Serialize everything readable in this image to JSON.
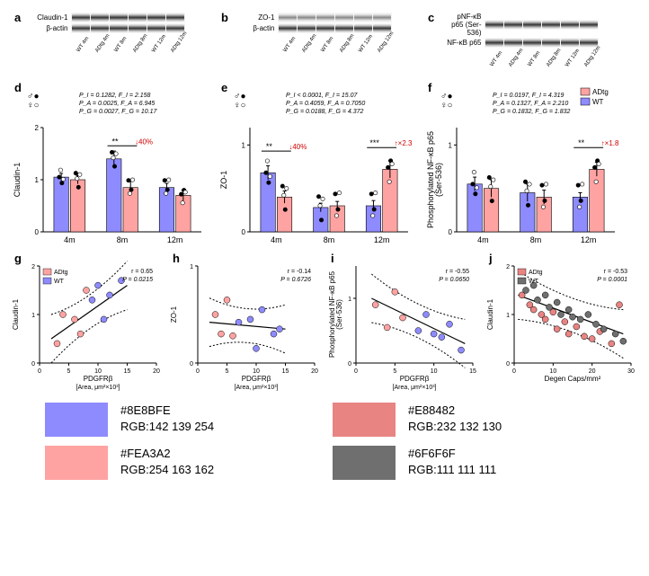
{
  "westerns": {
    "a": {
      "label": "a",
      "rows": [
        "Claudin-1",
        "β-actin"
      ],
      "lanes": [
        "WT 4m",
        "ADtg 4m",
        "WT 8m",
        "ADtg 8m",
        "WT 12m",
        "ADtg 12m"
      ]
    },
    "b": {
      "label": "b",
      "rows": [
        "ZO-1",
        "β-actin"
      ],
      "lanes": [
        "WT 4m",
        "ADtg 4m",
        "WT 8m",
        "ADtg 8m",
        "WT 12m",
        "ADtg 12m"
      ]
    },
    "c": {
      "label": "c",
      "rows": [
        "pNF-κB p65 (Ser-536)",
        "NF-κB p65"
      ],
      "lanes": [
        "WT 4m",
        "ADtg 4m",
        "WT 8m",
        "ADtg 8m",
        "WT 12m",
        "ADtg 12m"
      ]
    }
  },
  "barCharts": {
    "d": {
      "label": "d",
      "ylabel": "Claudin-1",
      "gender": "♂♀",
      "stats": [
        "P_I = 0.1282, F_I = 2.158",
        "P_A = 0.0025, F_A = 6.945",
        "P_G = 0.0027, F_G = 10.17"
      ],
      "groups": [
        "4m",
        "8m",
        "12m"
      ],
      "ymax": 2.0,
      "yticks": [
        0,
        1,
        2
      ],
      "series": [
        {
          "name": "WT",
          "color": "#8E8BFE",
          "values": [
            1.05,
            1.4,
            0.85
          ],
          "err": [
            0.07,
            0.15,
            0.08
          ]
        },
        {
          "name": "ADtg",
          "color": "#FEA3A2",
          "values": [
            1.0,
            0.85,
            0.7
          ],
          "err": [
            0.08,
            0.12,
            0.1
          ]
        }
      ],
      "annot": {
        "group": 1,
        "text": "**",
        "delta": "↓40%",
        "color": "#d00000"
      }
    },
    "e": {
      "label": "e",
      "ylabel": "ZO-1",
      "gender": "♂♀",
      "stats": [
        "P_I < 0.0001, F_I = 15.07",
        "P_A = 0.4059, F_A = 0.7050",
        "P_G = 0.0188, F_G = 4.372"
      ],
      "groups": [
        "4m",
        "8m",
        "12m"
      ],
      "ymax": 1.2,
      "yticks": [
        0,
        1
      ],
      "series": [
        {
          "name": "WT",
          "color": "#8E8BFE",
          "values": [
            0.68,
            0.28,
            0.3
          ],
          "err": [
            0.08,
            0.05,
            0.06
          ]
        },
        {
          "name": "ADtg",
          "color": "#FEA3A2",
          "values": [
            0.4,
            0.3,
            0.72
          ],
          "err": [
            0.07,
            0.05,
            0.1
          ]
        }
      ],
      "annot": {
        "group": 0,
        "text": "**",
        "delta": "↓40%",
        "color": "#d00000"
      },
      "annot2": {
        "group": 2,
        "text": "***",
        "delta": "↑×2.3",
        "color": "#d00000"
      }
    },
    "f": {
      "label": "f",
      "ylabel": "Phosphorylated NF-κB p65\n(Ser-536)",
      "gender": "♂♀",
      "stats": [
        "P_I = 0.0197, F_I = 4.319",
        "P_A = 0.1327, F_A = 2.210",
        "P_G = 0.1832, F_G = 1.832"
      ],
      "groups": [
        "4m",
        "8m",
        "12m"
      ],
      "ymax": 1.2,
      "yticks": [
        0,
        1
      ],
      "series": [
        {
          "name": "WT",
          "color": "#8E8BFE",
          "values": [
            0.55,
            0.45,
            0.4
          ],
          "err": [
            0.08,
            0.1,
            0.05
          ]
        },
        {
          "name": "ADtg",
          "color": "#FEA3A2",
          "values": [
            0.5,
            0.4,
            0.72
          ],
          "err": [
            0.1,
            0.08,
            0.08
          ]
        }
      ],
      "legend": [
        {
          "name": "ADtg",
          "color": "#FEA3A2"
        },
        {
          "name": "WT",
          "color": "#8E8BFE"
        }
      ],
      "annot": {
        "group": 2,
        "text": "**",
        "delta": "↑×1.8",
        "color": "#d00000"
      }
    }
  },
  "scatters": {
    "g": {
      "label": "g",
      "ylabel": "Claudin-1",
      "xlabel": "PDGFRβ",
      "xunit": "[Area, μm²×10³]",
      "xlim": [
        0,
        20
      ],
      "xticks": [
        0,
        5,
        10,
        15,
        20
      ],
      "ylim": [
        0,
        2
      ],
      "yticks": [
        0,
        1,
        2
      ],
      "r": "r = 0.65",
      "p": "P = 0.0215",
      "legend": [
        {
          "name": "ADtg",
          "color": "#FEA3A2"
        },
        {
          "name": "WT",
          "color": "#8E8BFE"
        }
      ],
      "fit": {
        "x1": 2,
        "y1": 0.5,
        "x2": 15,
        "y2": 1.6
      },
      "points": [
        {
          "x": 3,
          "y": 0.4,
          "c": "#FEA3A2"
        },
        {
          "x": 4,
          "y": 1.0,
          "c": "#FEA3A2"
        },
        {
          "x": 6,
          "y": 0.9,
          "c": "#FEA3A2"
        },
        {
          "x": 7,
          "y": 0.6,
          "c": "#FEA3A2"
        },
        {
          "x": 8,
          "y": 1.5,
          "c": "#FEA3A2"
        },
        {
          "x": 9,
          "y": 1.3,
          "c": "#8E8BFE"
        },
        {
          "x": 10,
          "y": 1.6,
          "c": "#8E8BFE"
        },
        {
          "x": 11,
          "y": 0.9,
          "c": "#8E8BFE"
        },
        {
          "x": 12,
          "y": 1.4,
          "c": "#8E8BFE"
        },
        {
          "x": 14,
          "y": 1.7,
          "c": "#8E8BFE"
        }
      ]
    },
    "h": {
      "label": "h",
      "ylabel": "ZO-1",
      "xlabel": "PDGFRβ",
      "xunit": "[Area, μm²×10³]",
      "xlim": [
        0,
        20
      ],
      "xticks": [
        0,
        5,
        10,
        15,
        20
      ],
      "ylim": [
        0,
        1
      ],
      "yticks": [
        0,
        1
      ],
      "r": "r = -0.14",
      "p": "P = 0.6726",
      "fit": {
        "x1": 2,
        "y1": 0.42,
        "x2": 15,
        "y2": 0.35
      },
      "points": [
        {
          "x": 3,
          "y": 0.5,
          "c": "#FEA3A2"
        },
        {
          "x": 4,
          "y": 0.3,
          "c": "#FEA3A2"
        },
        {
          "x": 5,
          "y": 0.65,
          "c": "#FEA3A2"
        },
        {
          "x": 6,
          "y": 0.28,
          "c": "#FEA3A2"
        },
        {
          "x": 7,
          "y": 0.42,
          "c": "#8E8BFE"
        },
        {
          "x": 9,
          "y": 0.45,
          "c": "#8E8BFE"
        },
        {
          "x": 10,
          "y": 0.15,
          "c": "#8E8BFE"
        },
        {
          "x": 11,
          "y": 0.55,
          "c": "#8E8BFE"
        },
        {
          "x": 13,
          "y": 0.3,
          "c": "#8E8BFE"
        },
        {
          "x": 14,
          "y": 0.35,
          "c": "#8E8BFE"
        }
      ]
    },
    "i": {
      "label": "i",
      "ylabel": "Phosphorylated NF-κB p65\n(Ser-536)",
      "xlabel": "PDGFRβ",
      "xunit": "[Area, μm²×10³]",
      "xlim": [
        0,
        15
      ],
      "xticks": [
        0,
        5,
        10,
        15
      ],
      "ylim": [
        0,
        1.5
      ],
      "yticks": [
        0,
        1
      ],
      "r": "r = -0.55",
      "p": "P = 0.0650",
      "fit": {
        "x1": 2,
        "y1": 1.0,
        "x2": 14,
        "y2": 0.3
      },
      "points": [
        {
          "x": 2.5,
          "y": 0.9,
          "c": "#FEA3A2"
        },
        {
          "x": 4,
          "y": 0.55,
          "c": "#FEA3A2"
        },
        {
          "x": 5,
          "y": 1.1,
          "c": "#FEA3A2"
        },
        {
          "x": 6,
          "y": 0.7,
          "c": "#FEA3A2"
        },
        {
          "x": 8,
          "y": 0.5,
          "c": "#8E8BFE"
        },
        {
          "x": 9,
          "y": 0.75,
          "c": "#8E8BFE"
        },
        {
          "x": 10,
          "y": 0.45,
          "c": "#8E8BFE"
        },
        {
          "x": 11,
          "y": 0.4,
          "c": "#8E8BFE"
        },
        {
          "x": 12,
          "y": 0.6,
          "c": "#8E8BFE"
        },
        {
          "x": 13.5,
          "y": 0.2,
          "c": "#8E8BFE"
        }
      ]
    },
    "j": {
      "label": "j",
      "ylabel": "Claudin-1",
      "xlabel": "Degen Caps/mm²",
      "xunit": "",
      "xlim": [
        0,
        30
      ],
      "xticks": [
        0,
        10,
        20,
        30
      ],
      "ylim": [
        0,
        2
      ],
      "yticks": [
        0,
        1,
        2
      ],
      "r": "r = -0.53",
      "p": "P = 0.0001",
      "legend": [
        {
          "name": "ADtg",
          "color": "#E88482"
        },
        {
          "name": "WT",
          "color": "#6F6F6F"
        }
      ],
      "fit": {
        "x1": 1,
        "y1": 1.4,
        "x2": 28,
        "y2": 0.6
      },
      "points": [
        {
          "x": 2,
          "y": 1.4,
          "c": "#E88482"
        },
        {
          "x": 3,
          "y": 1.5,
          "c": "#6F6F6F"
        },
        {
          "x": 4,
          "y": 1.2,
          "c": "#E88482"
        },
        {
          "x": 5,
          "y": 1.6,
          "c": "#6F6F6F"
        },
        {
          "x": 5,
          "y": 1.1,
          "c": "#E88482"
        },
        {
          "x": 6,
          "y": 1.3,
          "c": "#6F6F6F"
        },
        {
          "x": 7,
          "y": 1.0,
          "c": "#E88482"
        },
        {
          "x": 8,
          "y": 1.4,
          "c": "#6F6F6F"
        },
        {
          "x": 8,
          "y": 0.9,
          "c": "#E88482"
        },
        {
          "x": 9,
          "y": 1.15,
          "c": "#6F6F6F"
        },
        {
          "x": 10,
          "y": 1.05,
          "c": "#E88482"
        },
        {
          "x": 11,
          "y": 1.25,
          "c": "#6F6F6F"
        },
        {
          "x": 11,
          "y": 0.7,
          "c": "#E88482"
        },
        {
          "x": 12,
          "y": 1.0,
          "c": "#6F6F6F"
        },
        {
          "x": 13,
          "y": 0.85,
          "c": "#E88482"
        },
        {
          "x": 14,
          "y": 1.1,
          "c": "#6F6F6F"
        },
        {
          "x": 14,
          "y": 0.6,
          "c": "#E88482"
        },
        {
          "x": 15,
          "y": 0.95,
          "c": "#6F6F6F"
        },
        {
          "x": 16,
          "y": 0.75,
          "c": "#E88482"
        },
        {
          "x": 17,
          "y": 0.9,
          "c": "#6F6F6F"
        },
        {
          "x": 18,
          "y": 0.55,
          "c": "#E88482"
        },
        {
          "x": 19,
          "y": 1.0,
          "c": "#6F6F6F"
        },
        {
          "x": 20,
          "y": 0.5,
          "c": "#E88482"
        },
        {
          "x": 21,
          "y": 0.8,
          "c": "#6F6F6F"
        },
        {
          "x": 22,
          "y": 0.65,
          "c": "#E88482"
        },
        {
          "x": 23,
          "y": 0.7,
          "c": "#6F6F6F"
        },
        {
          "x": 25,
          "y": 0.4,
          "c": "#E88482"
        },
        {
          "x": 26,
          "y": 0.6,
          "c": "#6F6F6F"
        },
        {
          "x": 27,
          "y": 1.2,
          "c": "#E88482"
        },
        {
          "x": 28,
          "y": 0.45,
          "c": "#6F6F6F"
        }
      ]
    }
  },
  "palette": [
    {
      "hex": "#8E8BFE",
      "rgb": "RGB:142 139 254"
    },
    {
      "hex": "#E88482",
      "rgb": "RGB:232 132 130"
    },
    {
      "hex": "#FEA3A2",
      "rgb": "RGB:254 163 162"
    },
    {
      "hex": "#6F6F6F",
      "rgb": "RGB:111 111 111"
    }
  ]
}
